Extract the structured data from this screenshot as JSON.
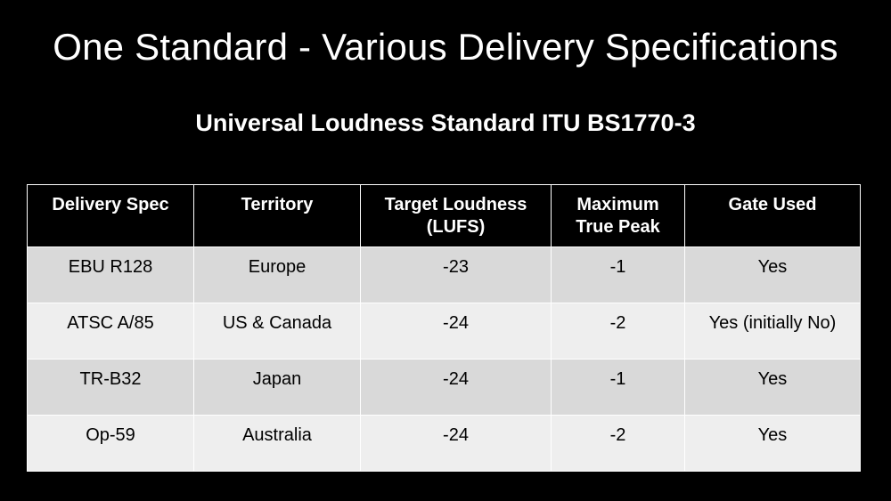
{
  "slide": {
    "title": "One Standard - Various Delivery Specifications",
    "subtitle": "Universal Loudness Standard ITU BS1770-3"
  },
  "table": {
    "headers": [
      "Delivery Spec",
      "Territory",
      "Target Loudness\n(LUFS)",
      "Maximum\nTrue Peak",
      "Gate Used"
    ],
    "rows": [
      [
        "EBU R128",
        "Europe",
        "-23",
        "-1",
        "Yes"
      ],
      [
        "ATSC A/85",
        "US & Canada",
        "-24",
        "-2",
        "Yes (initially No)"
      ],
      [
        "TR-B32",
        "Japan",
        "-24",
        "-1",
        "Yes"
      ],
      [
        "Op-59",
        "Australia",
        "-24",
        "-2",
        "Yes"
      ]
    ]
  },
  "colors": {
    "background": "#000000",
    "header_text": "#ffffff",
    "row_odd": "#d9d9d9",
    "row_even": "#eeeeee",
    "grid": "#ffffff"
  }
}
